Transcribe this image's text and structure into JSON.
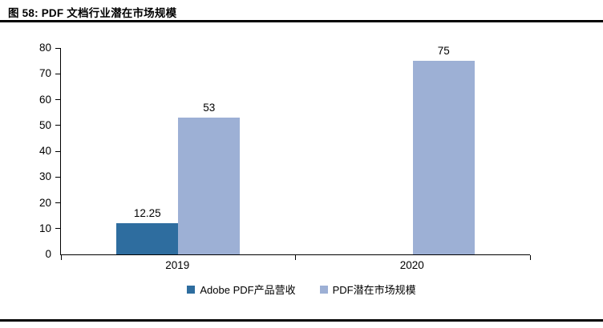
{
  "figure": {
    "title": "图 58:  PDF 文档行业潜在市场规模"
  },
  "chart_data": {
    "type": "bar",
    "title": "PDF文档行业潜在市场规模",
    "categories": [
      "2019",
      "2020"
    ],
    "series": [
      {
        "name": "Adobe PDF产品营收",
        "color": "#2E6D9F",
        "values": [
          12.25,
          null
        ]
      },
      {
        "name": "PDF潜在市场规模",
        "color": "#9DB0D5",
        "values": [
          53,
          75
        ]
      }
    ],
    "data_labels": [
      "12.25",
      "53",
      "75"
    ],
    "ylim": [
      0,
      80
    ],
    "ytick_step": 10,
    "xlabel": "",
    "ylabel": "",
    "grid": false,
    "legend_position": "bottom"
  },
  "colors": {
    "rule": "#000000",
    "background": "#ffffff"
  }
}
